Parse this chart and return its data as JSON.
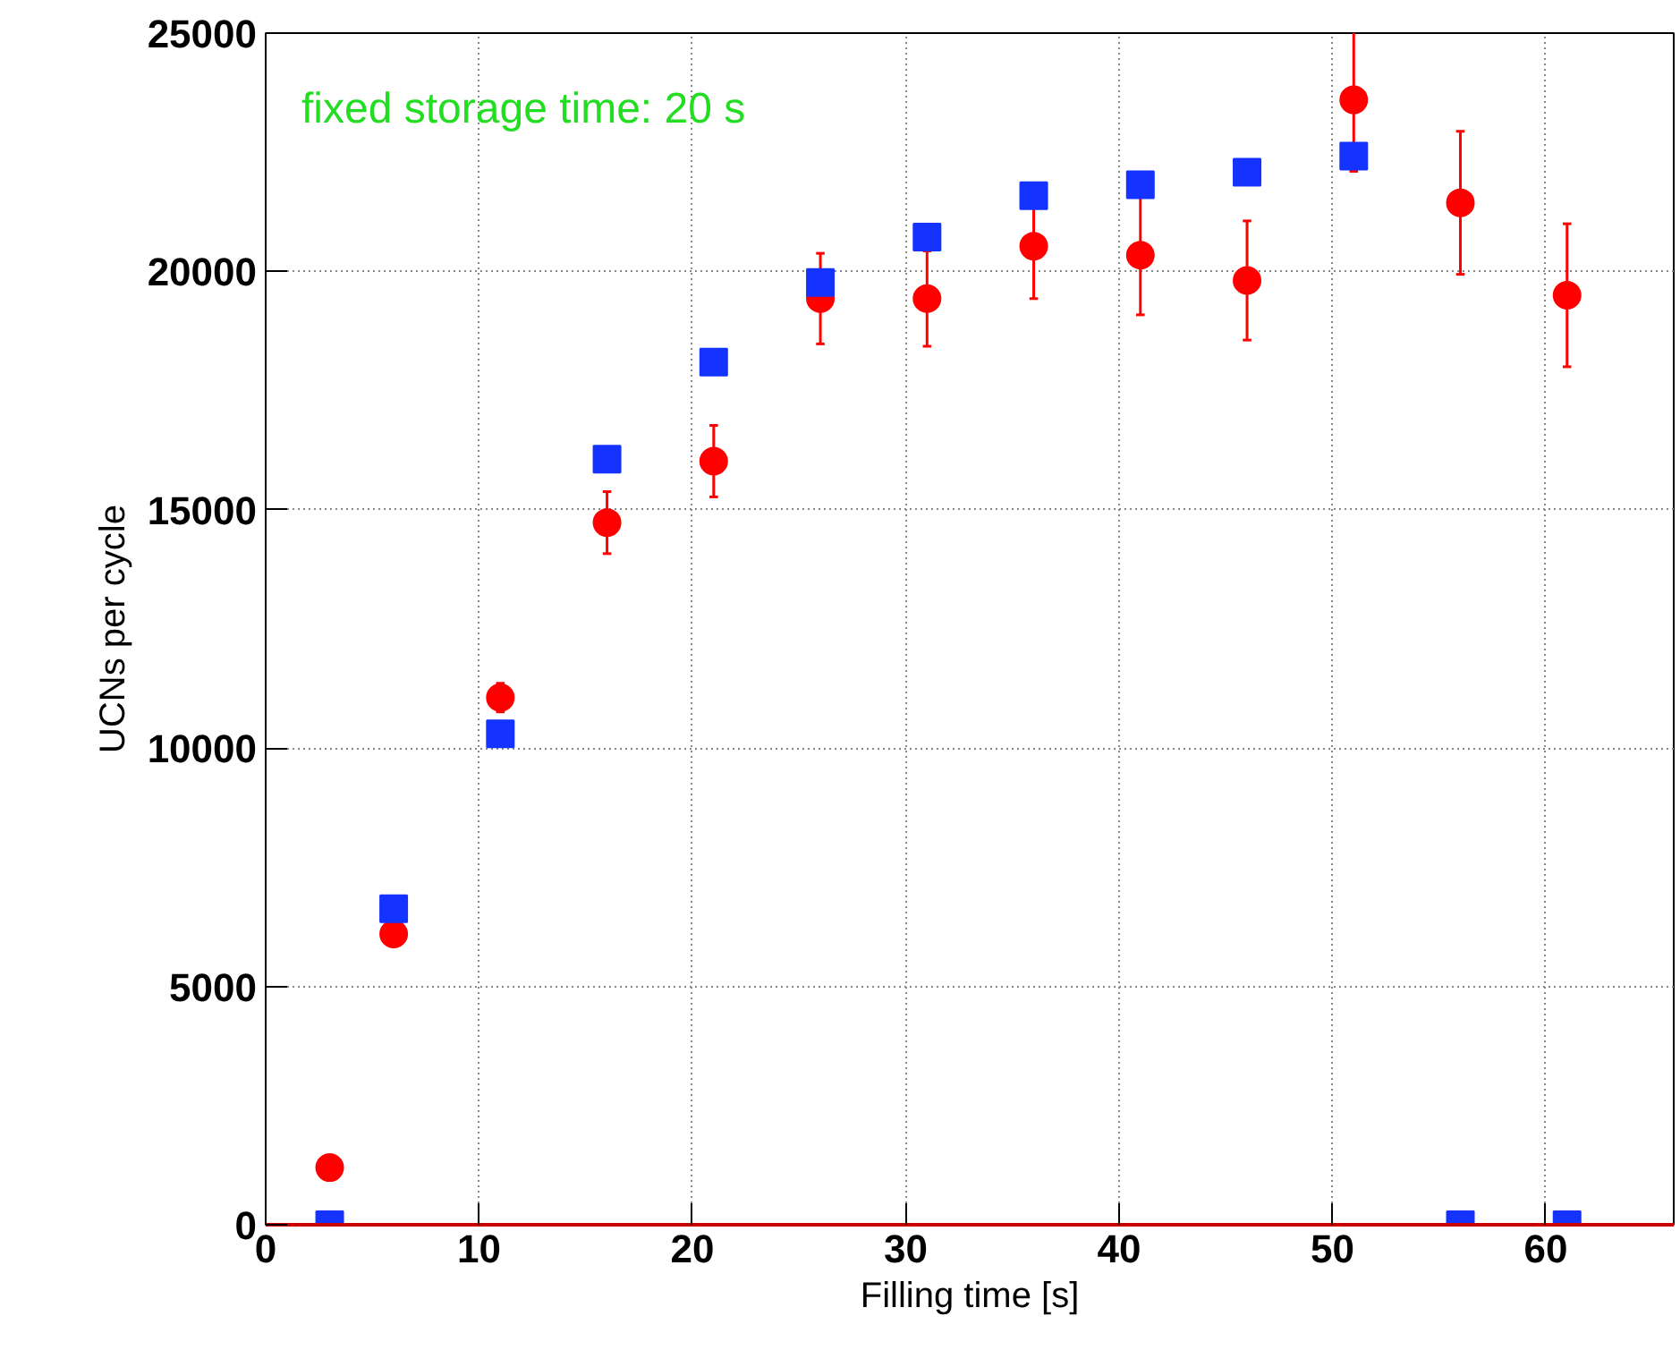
{
  "chart_data": {
    "type": "scatter",
    "xlabel": "Filling time [s]",
    "ylabel": "UCNs per cycle",
    "annotations": [
      "fixed storage time: 20 s"
    ],
    "x": [
      3,
      6,
      11,
      16,
      21,
      26,
      31,
      36,
      41,
      46,
      51,
      56,
      61
    ],
    "series": [
      {
        "color": "#ff0000",
        "marker": "circle",
        "values": [
          1200,
          6100,
          11060,
          14730,
          16020,
          19430,
          19430,
          20530,
          20340,
          19810,
          23600,
          21440,
          19500
        ],
        "errors": [
          null,
          null,
          300,
          650,
          750,
          950,
          1000,
          1100,
          1250,
          1250,
          1500,
          1500,
          1500
        ]
      },
      {
        "color": "#1433ff",
        "marker": "square",
        "values": [
          0,
          6630,
          10300,
          16060,
          18100,
          19770,
          20720,
          21590,
          21820,
          22080,
          22420,
          0,
          0
        ]
      }
    ],
    "xlim": [
      0,
      66
    ],
    "ylim": [
      0,
      25000
    ],
    "xticks": [
      0,
      10,
      20,
      30,
      40,
      50,
      60
    ],
    "yticks": [
      0,
      5000,
      10000,
      15000,
      20000,
      25000
    ],
    "grid": true
  }
}
